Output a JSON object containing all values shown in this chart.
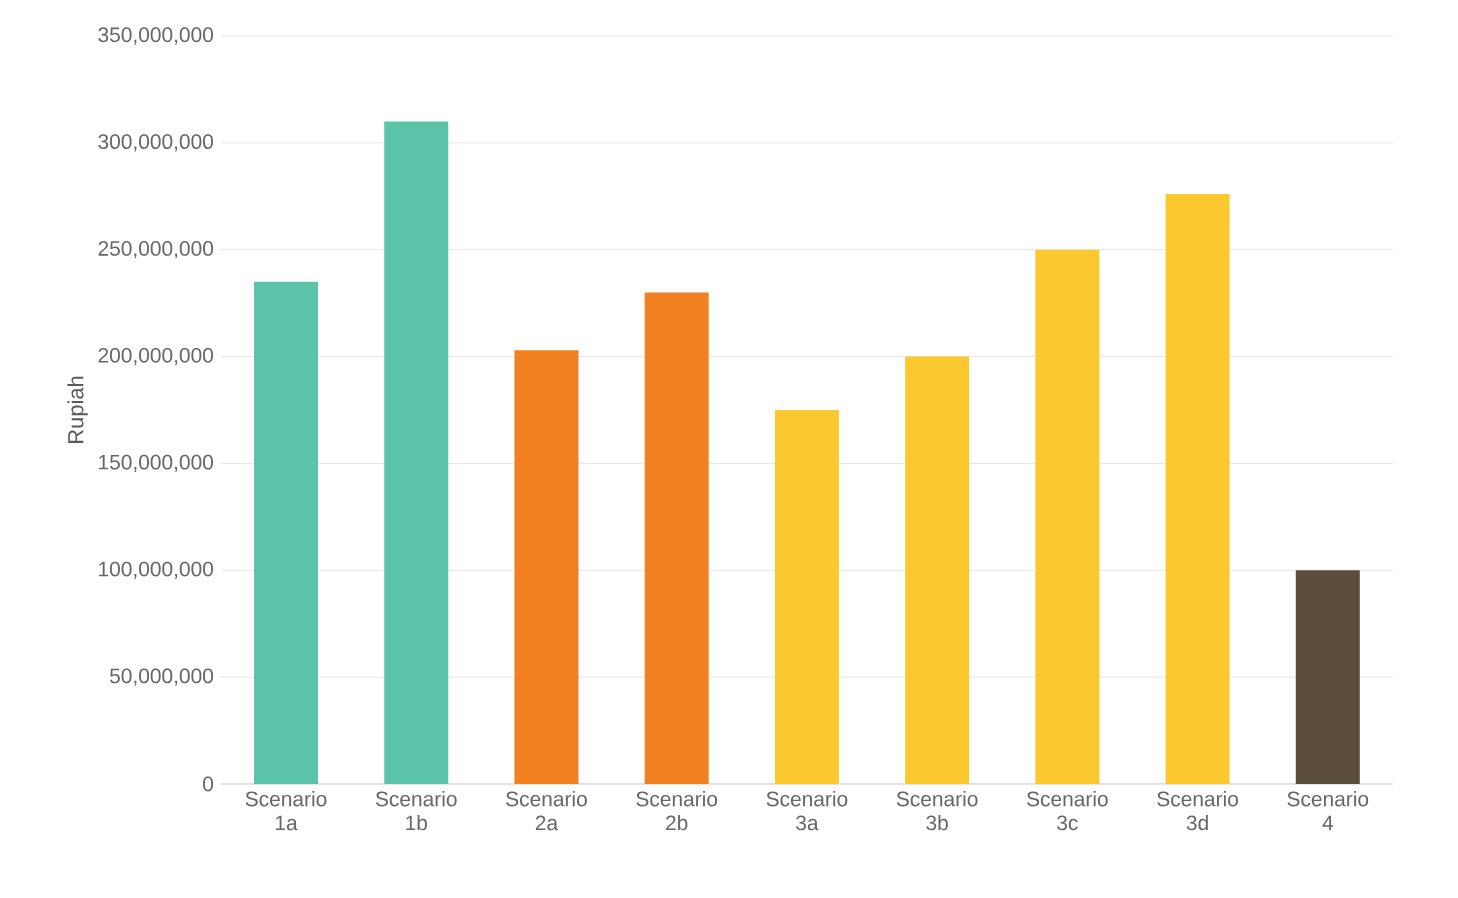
{
  "chart_data": {
    "type": "bar",
    "ylabel": "Rupiah",
    "categories": [
      "Scenario 1a",
      "Scenario 1b",
      "Scenario 2a",
      "Scenario 2b",
      "Scenario 3a",
      "Scenario 3b",
      "Scenario 3c",
      "Scenario 3d",
      "Scenario 4"
    ],
    "values": [
      235000000,
      310000000,
      203000000,
      230000000,
      175000000,
      200000000,
      250000000,
      276000000,
      100000000
    ],
    "colors": [
      "#5bc4a8",
      "#5bc4a8",
      "#f08020",
      "#f08020",
      "#fcc830",
      "#fcc830",
      "#fcc830",
      "#fcc830",
      "#5a4e3a"
    ],
    "ylim": [
      0,
      350000000
    ],
    "yticks": [
      {
        "value": 0,
        "label": "0"
      },
      {
        "value": 50000000,
        "label": "50,000,000"
      },
      {
        "value": 100000000,
        "label": "100,000,000"
      },
      {
        "value": 150000000,
        "label": "150,000,000"
      },
      {
        "value": 200000000,
        "label": "200,000,000"
      },
      {
        "value": 250000000,
        "label": "250,000,000"
      },
      {
        "value": 300000000,
        "label": "300,000,000"
      },
      {
        "value": 350000000,
        "label": "350,000,000"
      }
    ],
    "grid": "y"
  }
}
